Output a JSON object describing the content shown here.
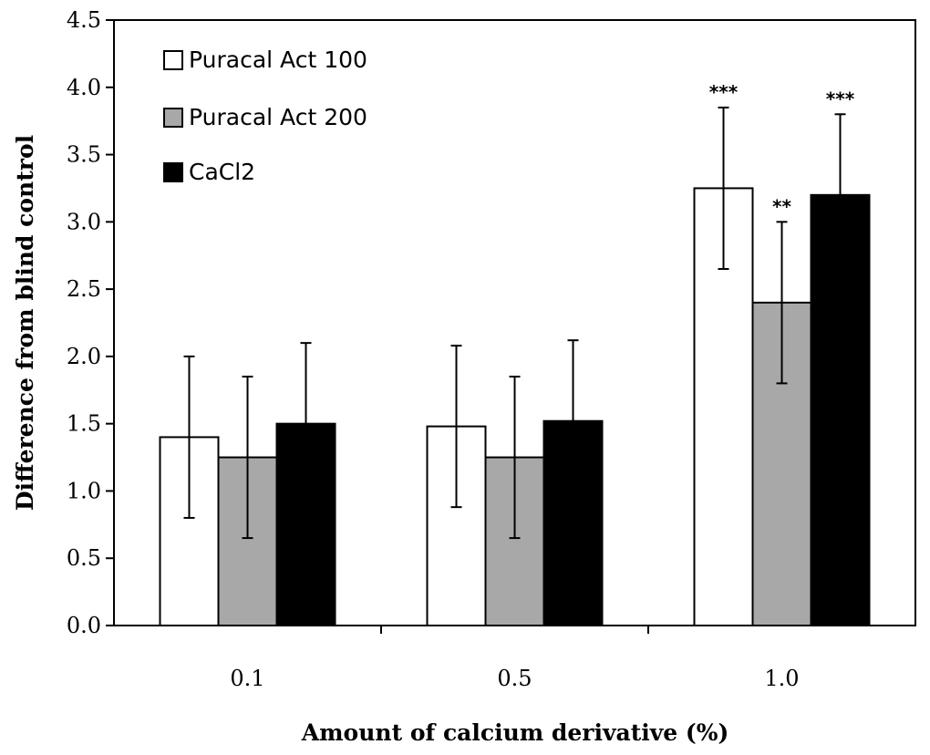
{
  "chart_data": {
    "type": "bar",
    "title": "",
    "xlabel": "Amount of calcium derivative (%)",
    "ylabel": "Difference from blind control",
    "ylim": [
      0,
      4.5
    ],
    "yticks": [
      "0.0",
      "0.5",
      "1.0",
      "1.5",
      "2.0",
      "2.5",
      "3.0",
      "3.5",
      "4.0",
      "4.5"
    ],
    "categories": [
      "0.1",
      "0.5",
      "1.0"
    ],
    "legend_position": "top-left",
    "grid": false,
    "series": [
      {
        "name": "Puracal Act 100",
        "color": "#ffffff",
        "values": [
          1.4,
          1.48,
          3.25
        ],
        "errors": [
          0.6,
          0.6,
          0.6
        ],
        "significance": [
          "",
          "",
          "***"
        ]
      },
      {
        "name": "Puracal Act 200",
        "color": "#a8a8a8",
        "values": [
          1.25,
          1.25,
          2.4
        ],
        "errors": [
          0.6,
          0.6,
          0.6
        ],
        "significance": [
          "",
          "",
          "**"
        ]
      },
      {
        "name": "CaCl2",
        "color": "#000000",
        "values": [
          1.5,
          1.52,
          3.2
        ],
        "errors": [
          0.6,
          0.6,
          0.6
        ],
        "significance": [
          "",
          "",
          "***"
        ]
      }
    ]
  }
}
